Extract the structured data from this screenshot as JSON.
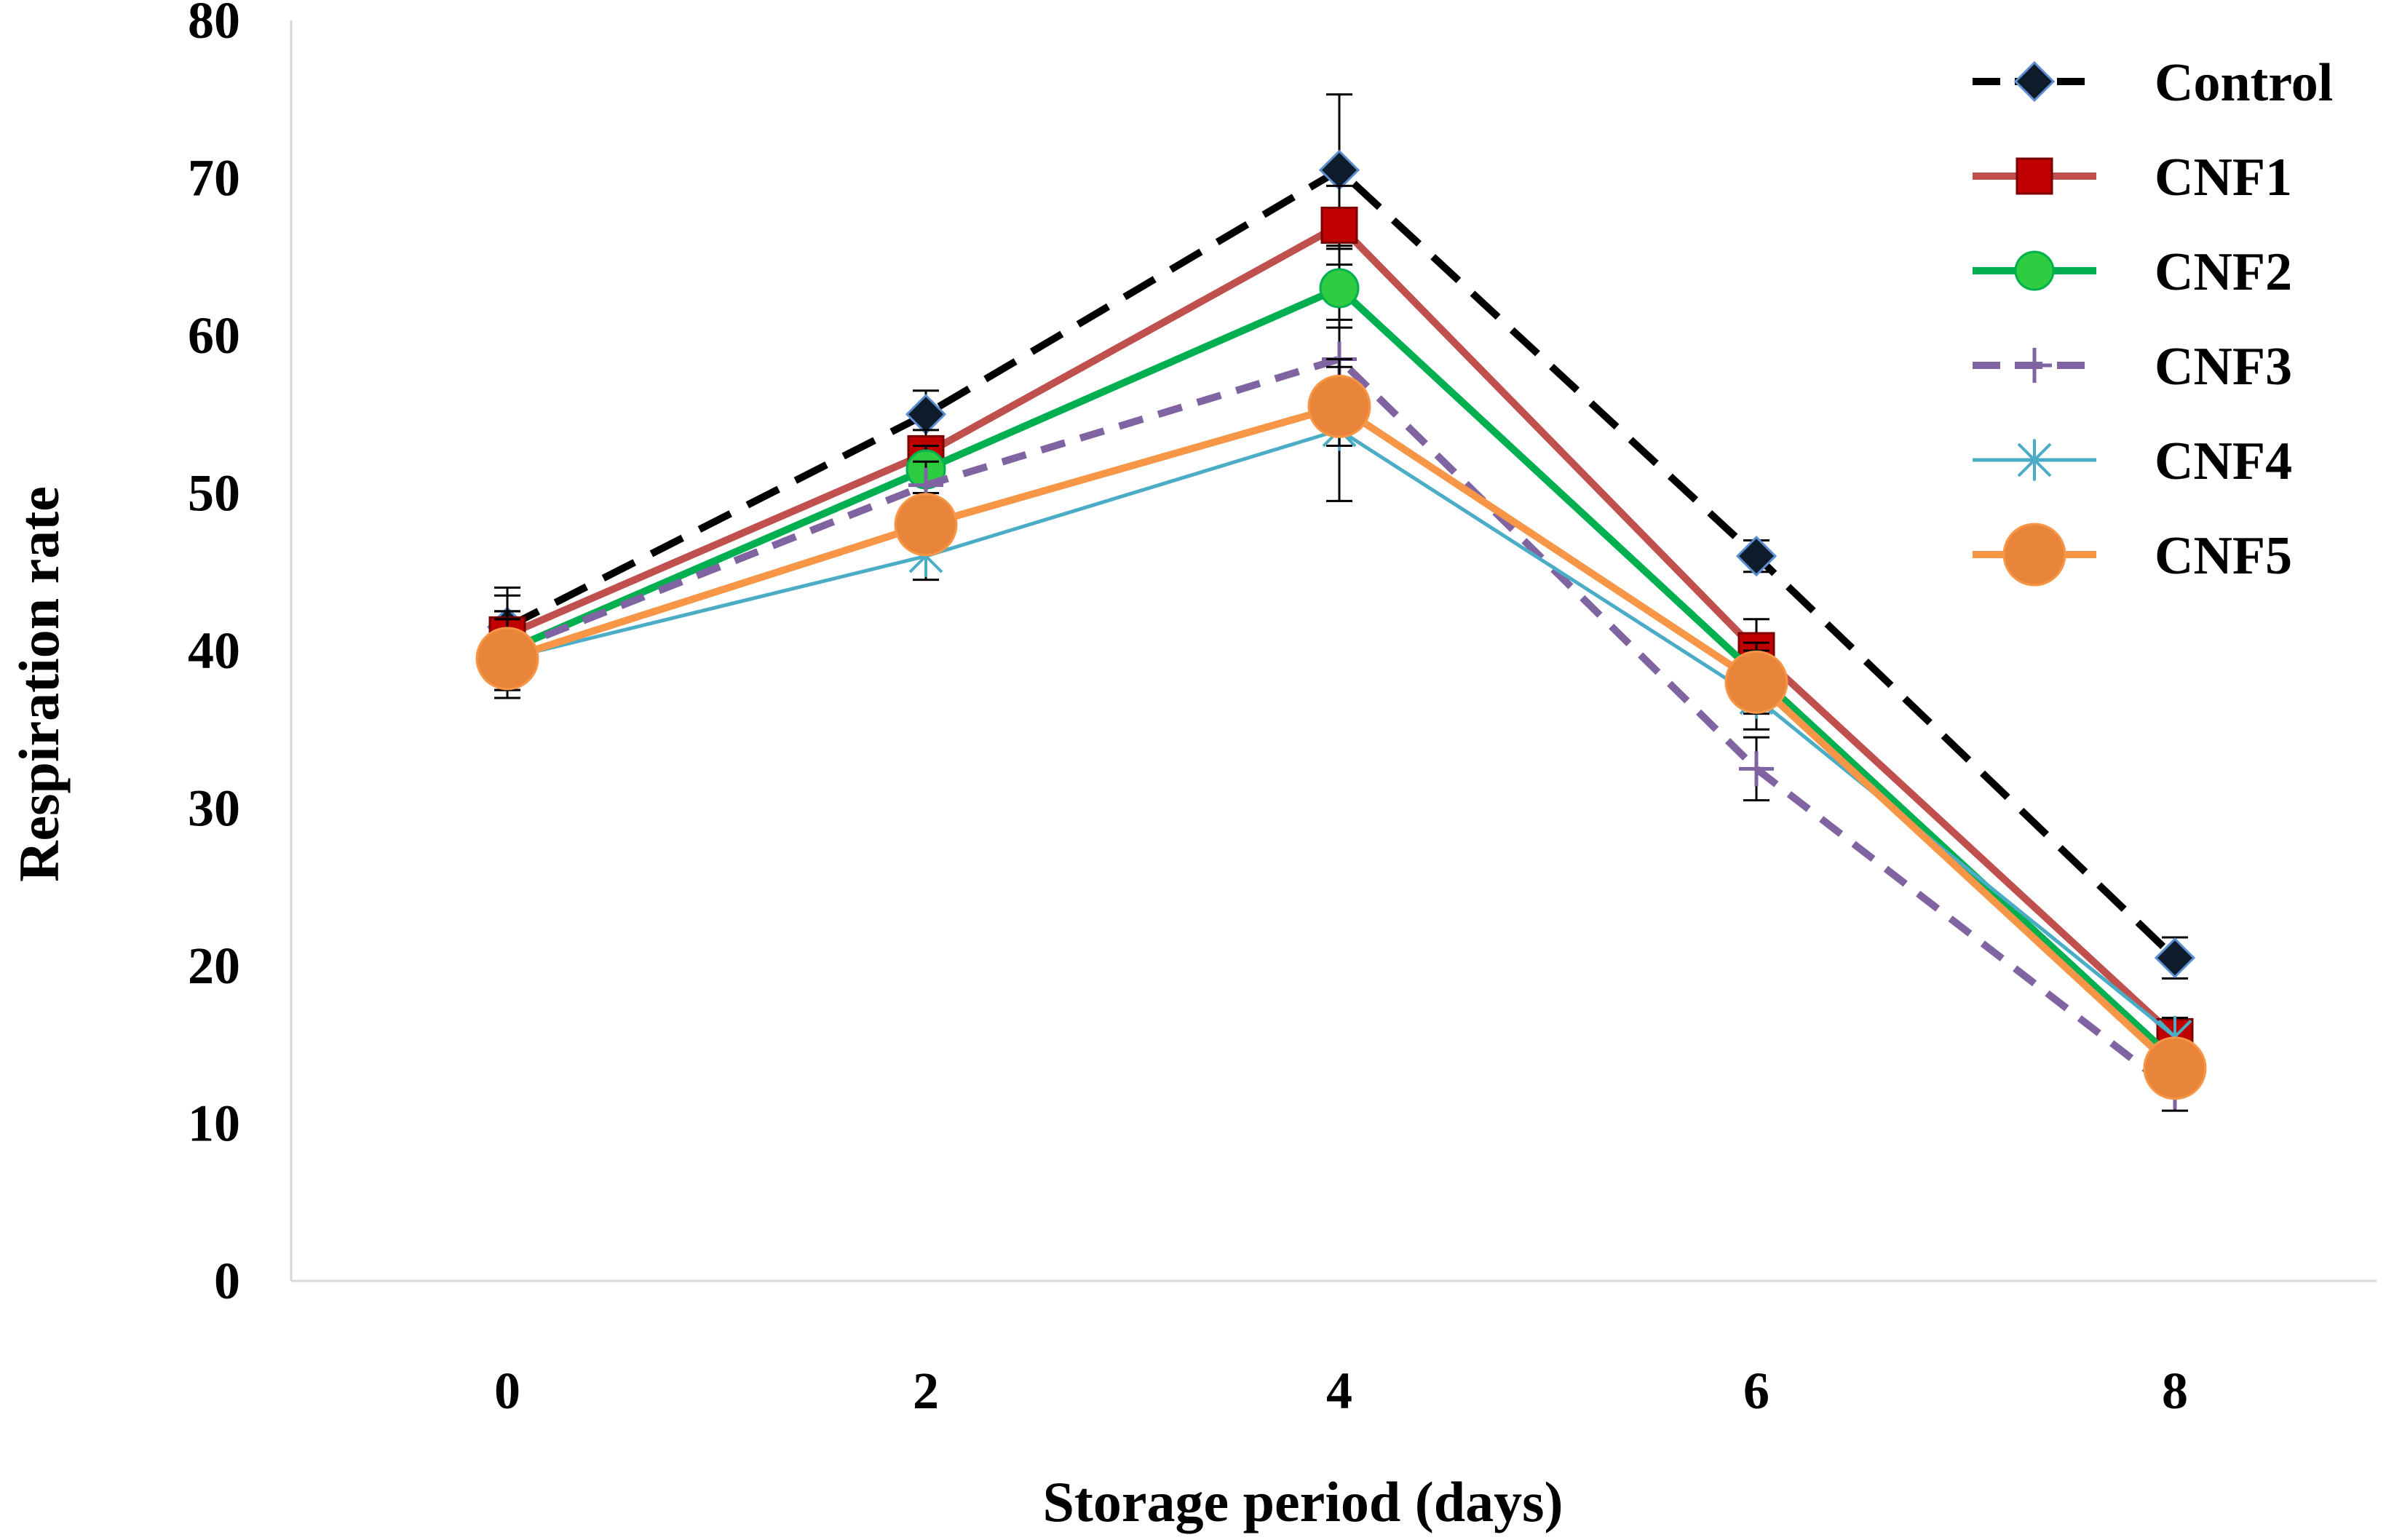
{
  "chart_data": {
    "type": "line",
    "title": "",
    "xlabel": "Storage period (days)",
    "ylabel": "Respiration rate",
    "x": [
      0,
      2,
      4,
      6,
      8
    ],
    "x_tick_labels": [
      "0",
      "2",
      "4",
      "6",
      "8"
    ],
    "ylim": [
      0,
      80
    ],
    "y_ticks": [
      0,
      10,
      20,
      30,
      40,
      50,
      60,
      70,
      80
    ],
    "y_tick_labels": [
      "0",
      "10",
      "20",
      "30",
      "40",
      "50",
      "60",
      "70",
      "80"
    ],
    "grid": false,
    "legend_position": "top-right",
    "series": [
      {
        "name": "Control",
        "values": [
          41.5,
          55,
          70.5,
          46,
          20.5
        ],
        "errors": [
          2.5,
          1.5,
          4.8,
          1,
          1.3
        ],
        "color": "#000000",
        "marker": "diamond",
        "marker_color": "#0d1b2a",
        "dash": "dashed"
      },
      {
        "name": "CNF1",
        "values": [
          41,
          52.5,
          67,
          40,
          15.5
        ],
        "errors": [
          2.5,
          1.5,
          2.5,
          2,
          1.2
        ],
        "color": "#c0504d",
        "marker": "square",
        "marker_color": "#c00000",
        "dash": "solid"
      },
      {
        "name": "CNF2",
        "values": [
          40,
          51.5,
          63,
          38.5,
          14
        ],
        "errors": [
          2.5,
          1.5,
          2.5,
          2,
          1.2
        ],
        "color": "#00b050",
        "marker": "circle",
        "marker_color": "#2ecc40",
        "dash": "solid"
      },
      {
        "name": "CNF3",
        "values": [
          40,
          50.5,
          58.5,
          32.5,
          12
        ],
        "errors": [
          2.5,
          1.5,
          2.5,
          2,
          1.2
        ],
        "color": "#8064a2",
        "marker": "plus",
        "marker_color": "#8064a2",
        "dash": "dashed"
      },
      {
        "name": "CNF4",
        "values": [
          39.5,
          46,
          54,
          37,
          15.5
        ],
        "errors": [
          2.5,
          1.5,
          4.5,
          2,
          1.2
        ],
        "color": "#4bacc6",
        "marker": "star",
        "marker_color": "#4bacc6",
        "dash": "solid"
      },
      {
        "name": "CNF5",
        "values": [
          39.5,
          48,
          55.5,
          38,
          13.5
        ],
        "errors": [
          2.5,
          1.5,
          2.5,
          2,
          1.2
        ],
        "color": "#f79646",
        "marker": "circle",
        "marker_color": "#e8853a",
        "dash": "solid"
      }
    ]
  }
}
